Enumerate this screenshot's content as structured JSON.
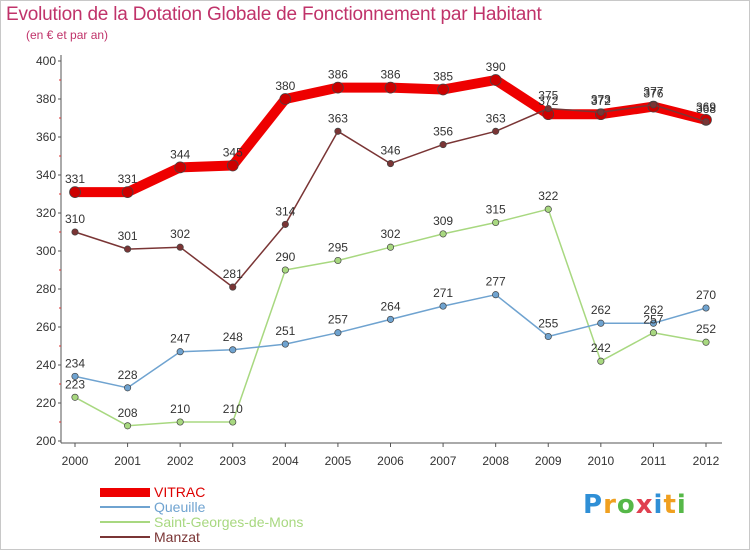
{
  "header": {
    "title": "Evolution de la Dotation Globale de Fonctionnement par Habitant",
    "subtitle": "(en € et par an)"
  },
  "logo": {
    "text": "Proxiti",
    "colors": [
      "#2f8fd6",
      "#f0a020",
      "#56b848",
      "#e04050",
      "#2f8fd6",
      "#f0a020",
      "#56b848"
    ]
  },
  "chart_data": {
    "type": "line",
    "title": "Evolution de la Dotation Globale de Fonctionnement par Habitant",
    "subtitle": "(en € et par an)",
    "x": [
      "2000",
      "2001",
      "2002",
      "2003",
      "2004",
      "2005",
      "2006",
      "2007",
      "2008",
      "2009",
      "2010",
      "2011",
      "2012"
    ],
    "ylim": [
      200,
      400
    ],
    "yticks": [
      200,
      220,
      240,
      260,
      280,
      300,
      320,
      340,
      360,
      380,
      400
    ],
    "grid": false,
    "legend_position": "bottom-left",
    "series": [
      {
        "name": "VITRAC",
        "color": "#ee0000",
        "values": [
          331,
          331,
          344,
          345,
          380,
          386,
          386,
          385,
          390,
          372,
          372,
          376,
          369
        ]
      },
      {
        "name": "Queuille",
        "color": "#6fa3d0",
        "values": [
          234,
          228,
          247,
          248,
          251,
          257,
          264,
          271,
          277,
          255,
          262,
          262,
          270
        ]
      },
      {
        "name": "Saint-Georges-de-Mons",
        "color": "#a8d880",
        "values": [
          223,
          208,
          210,
          210,
          290,
          295,
          302,
          309,
          315,
          322,
          242,
          257,
          252
        ]
      },
      {
        "name": "Manzat",
        "color": "#7a3535",
        "values": [
          310,
          301,
          302,
          281,
          314,
          363,
          346,
          356,
          363,
          375,
          373,
          377,
          368
        ]
      }
    ]
  }
}
